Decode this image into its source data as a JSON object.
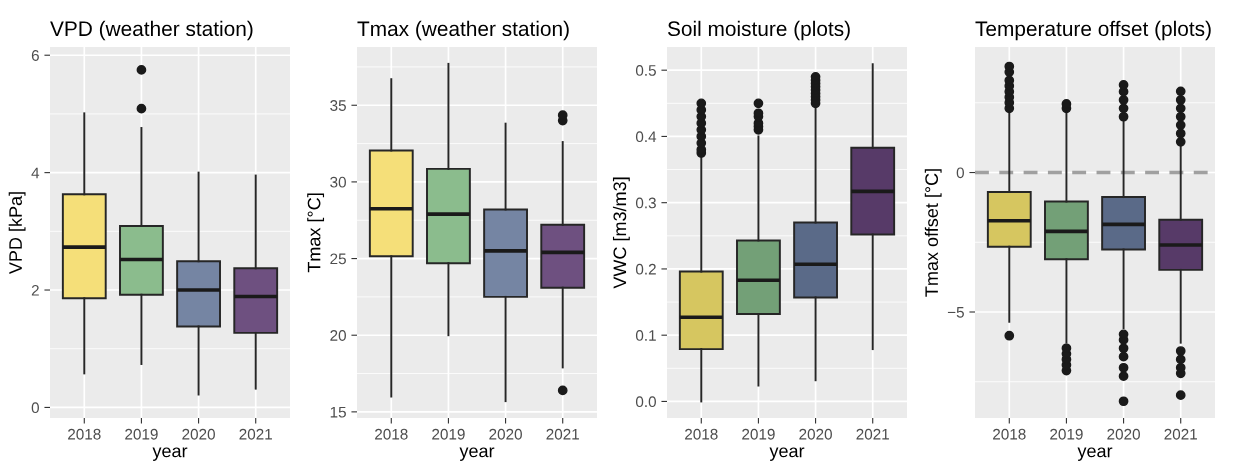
{
  "chart_data": [
    {
      "type": "box",
      "title": "VPD (weather station)",
      "xlabel": "year",
      "ylabel": "VPD [kPa]",
      "categories": [
        "2018",
        "2019",
        "2020",
        "2021"
      ],
      "colors": [
        "#f5df79",
        "#8bbc8d",
        "#7585a3",
        "#6e5080"
      ],
      "grid": true,
      "ylim": [
        -0.18,
        6.14
      ],
      "yticks": [
        0,
        2,
        4,
        6
      ],
      "boxes": [
        {
          "low": 0.58,
          "q1": 1.86,
          "median": 2.73,
          "q3": 3.63,
          "high": 5.01
        },
        {
          "low": 0.74,
          "q1": 1.92,
          "median": 2.52,
          "q3": 3.09,
          "high": 4.76,
          "outliers": [
            5.09,
            5.75
          ]
        },
        {
          "low": 0.22,
          "q1": 1.38,
          "median": 2.0,
          "q3": 2.49,
          "high": 4.0
        },
        {
          "low": 0.32,
          "q1": 1.27,
          "median": 1.89,
          "q3": 2.37,
          "high": 3.95
        }
      ]
    },
    {
      "type": "box",
      "title": "Tmax (weather station)",
      "xlabel": "year",
      "ylabel": "Tmax [°C]",
      "categories": [
        "2018",
        "2019",
        "2020",
        "2021"
      ],
      "colors": [
        "#f5df79",
        "#8bbc8d",
        "#7585a3",
        "#6e5080"
      ],
      "grid": true,
      "ylim": [
        14.6,
        38.8
      ],
      "yticks": [
        15,
        20,
        25,
        30,
        35
      ],
      "boxes": [
        {
          "low": 16.0,
          "q1": 25.15,
          "median": 28.25,
          "q3": 32.05,
          "high": 36.7
        },
        {
          "low": 20.0,
          "q1": 24.7,
          "median": 27.9,
          "q3": 30.85,
          "high": 37.7
        },
        {
          "low": 15.7,
          "q1": 22.5,
          "median": 25.5,
          "q3": 28.2,
          "high": 33.8
        },
        {
          "low": 17.9,
          "q1": 23.1,
          "median": 25.4,
          "q3": 27.2,
          "high": 32.6,
          "outliers": [
            16.4,
            34.0,
            34.35
          ]
        }
      ]
    },
    {
      "type": "box",
      "title": "Soil moisture (plots)",
      "xlabel": "year",
      "ylabel": "VWC [m3/m3]",
      "categories": [
        "2018",
        "2019",
        "2020",
        "2021"
      ],
      "colors": [
        "#d6c660",
        "#73a077",
        "#5a6a88",
        "#573a68"
      ],
      "grid": true,
      "ylim": [
        -0.025,
        0.535
      ],
      "yticks": [
        {
          "value": 0,
          "label": "0.0"
        },
        0.1,
        0.2,
        0.3,
        0.4,
        0.5
      ],
      "boxes": [
        {
          "low": 0.0,
          "q1": 0.079,
          "median": 0.127,
          "q3": 0.196,
          "high": 0.37,
          "outliers": [
            0.375,
            0.38,
            0.39,
            0.4,
            0.41,
            0.42,
            0.43,
            0.44,
            0.45
          ]
        },
        {
          "low": 0.024,
          "q1": 0.132,
          "median": 0.183,
          "q3": 0.243,
          "high": 0.4,
          "outliers": [
            0.41,
            0.415,
            0.42,
            0.43,
            0.435,
            0.45
          ]
        },
        {
          "low": 0.032,
          "q1": 0.157,
          "median": 0.207,
          "q3": 0.27,
          "high": 0.445,
          "outliers": [
            0.45,
            0.455,
            0.46,
            0.465,
            0.47,
            0.475,
            0.48,
            0.485,
            0.49
          ]
        },
        {
          "low": 0.079,
          "q1": 0.252,
          "median": 0.317,
          "q3": 0.383,
          "high": 0.509
        }
      ]
    },
    {
      "type": "box",
      "title": "Temperature offset (plots)",
      "xlabel": "year",
      "ylabel": "Tmax offset [°C]",
      "categories": [
        "2018",
        "2019",
        "2020",
        "2021"
      ],
      "colors": [
        "#d6c660",
        "#73a077",
        "#5a6a88",
        "#573a68"
      ],
      "grid": true,
      "ylim": [
        -8.8,
        4.5
      ],
      "yticks": [
        {
          "value": -5,
          "label": "−5"
        },
        0
      ],
      "ref_lines": [
        {
          "axis": "y",
          "value": 0,
          "color": "#a0a0a0",
          "line_style": "dashed"
        }
      ],
      "boxes": [
        {
          "low": -5.35,
          "q1": -2.66,
          "median": -1.73,
          "q3": -0.7,
          "high": 2.13,
          "outliers": [
            -5.85,
            2.3,
            2.5,
            2.7,
            2.9,
            3.1,
            3.3,
            3.6,
            3.8
          ]
        },
        {
          "low": -6.1,
          "q1": -3.11,
          "median": -2.11,
          "q3": -1.04,
          "high": 2.13,
          "outliers": [
            -7.1,
            -6.9,
            -6.7,
            -6.5,
            -6.3,
            2.3,
            2.46
          ]
        },
        {
          "low": -5.58,
          "q1": -2.76,
          "median": -1.86,
          "q3": -0.88,
          "high": 1.9,
          "outliers": [
            -8.2,
            -7.3,
            -7.0,
            -6.6,
            -6.3,
            -6.0,
            -5.8,
            2.0,
            2.3,
            2.6,
            2.9,
            3.14
          ]
        },
        {
          "low": -6.1,
          "q1": -3.49,
          "median": -2.6,
          "q3": -1.69,
          "high": 0.92,
          "outliers": [
            -7.98,
            -7.2,
            -7.0,
            -6.7,
            -6.4,
            1.1,
            1.4,
            1.7,
            2.0,
            2.3,
            2.6,
            2.91
          ]
        }
      ]
    }
  ]
}
